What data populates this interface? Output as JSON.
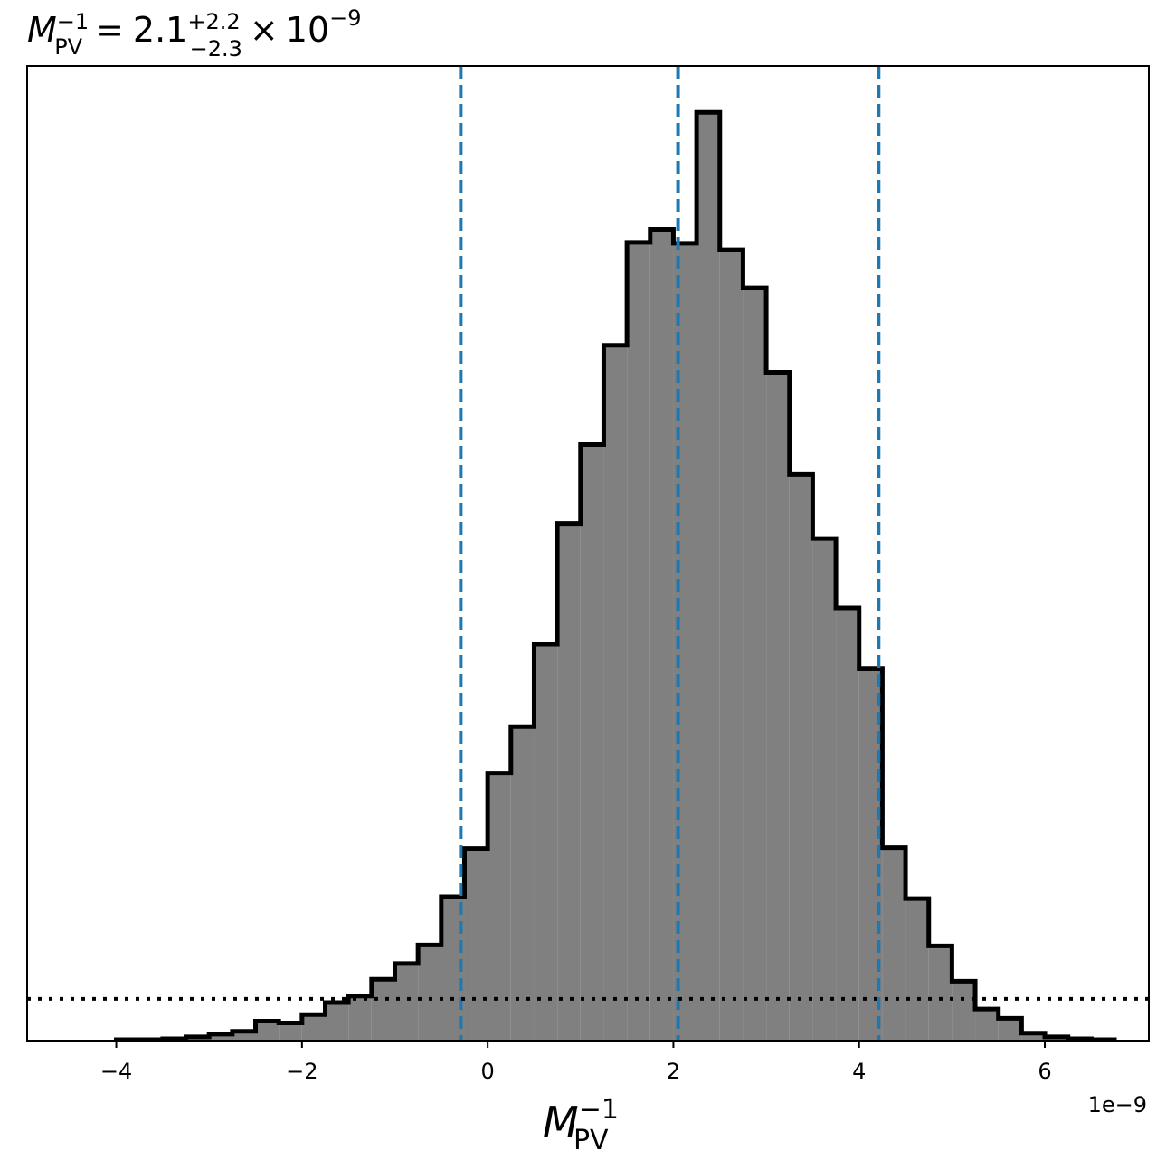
{
  "chart_data": {
    "type": "histogram",
    "title": {
      "symbol": "M",
      "superscript": "−1",
      "subscript": "PV",
      "equals": "=",
      "value": "2.1",
      "upper_err": "+2.2",
      "lower_err": "−2.3",
      "times": "×",
      "scale_base": "10",
      "scale_exp": "−9"
    },
    "xlabel": {
      "symbol": "M",
      "superscript": "−1",
      "subscript": "PV"
    },
    "x_offset_label": "1e−9",
    "xlim": [
      -4.96,
      7.12
    ],
    "ylim": [
      0,
      1.05
    ],
    "x_ticks": [
      -4,
      -2,
      0,
      2,
      4,
      6
    ],
    "x_tick_labels": [
      "−4",
      "−2",
      "0",
      "2",
      "4",
      "6"
    ],
    "y_ticks_shown": false,
    "bin_edges": [
      -4.0,
      -3.75,
      -3.5,
      -3.25,
      -3.0,
      -2.75,
      -2.5,
      -2.25,
      -2.0,
      -1.75,
      -1.5,
      -1.25,
      -1.0,
      -0.75,
      -0.5,
      -0.25,
      0.0,
      0.25,
      0.5,
      0.75,
      1.0,
      1.25,
      1.5,
      1.75,
      2.0,
      2.25,
      2.5,
      2.75,
      3.0,
      3.25,
      3.5,
      3.75,
      4.0,
      4.25,
      4.5,
      4.75,
      5.0,
      5.25,
      5.5,
      5.75,
      6.0,
      6.25,
      6.5,
      6.75
    ],
    "counts": [
      0.001,
      0.001,
      0.002,
      0.004,
      0.007,
      0.01,
      0.021,
      0.019,
      0.028,
      0.041,
      0.048,
      0.066,
      0.083,
      0.103,
      0.155,
      0.207,
      0.288,
      0.338,
      0.427,
      0.557,
      0.642,
      0.749,
      0.86,
      0.874,
      0.859,
      1.0,
      0.852,
      0.811,
      0.72,
      0.61,
      0.541,
      0.466,
      0.401,
      0.208,
      0.153,
      0.102,
      0.064,
      0.034,
      0.024,
      0.008,
      0.004,
      0.002,
      0.001
    ],
    "quantile_lines": [
      -0.29,
      2.05,
      4.21
    ],
    "reference_level": 0.045,
    "colors": {
      "fill": "#808080",
      "outline": "#000000",
      "quantile": "#1f77b4",
      "reference": "#000000"
    }
  }
}
